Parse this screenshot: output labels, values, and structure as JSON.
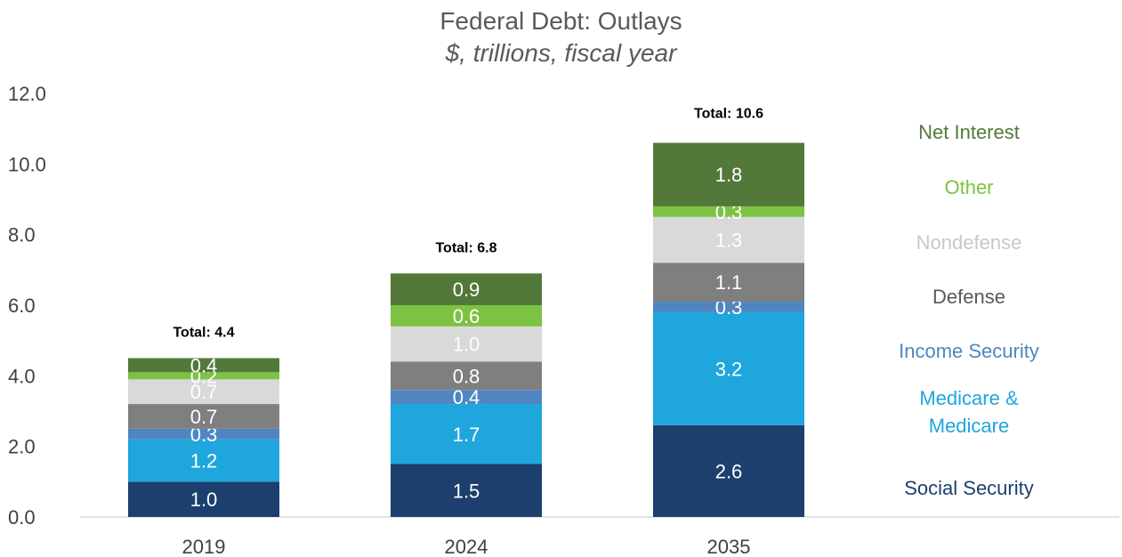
{
  "chart_data": {
    "type": "bar",
    "stacked": true,
    "title": "Federal Debt: Outlays",
    "subtitle": "$, trillions, fiscal year",
    "categories": [
      "2019",
      "2024",
      "2035"
    ],
    "ylim": [
      0,
      12
    ],
    "yticks": [
      "0.0",
      "2.0",
      "4.0",
      "6.0",
      "8.0",
      "10.0",
      "12.0"
    ],
    "grid": false,
    "legend_position": "right",
    "totals": [
      "Total: 4.4",
      "Total: 6.8",
      "Total: 10.6"
    ],
    "total_values": [
      4.4,
      6.8,
      10.6
    ],
    "series": [
      {
        "name": "Social Security",
        "color": "#1c3f6e",
        "values": [
          1.0,
          1.5,
          2.6
        ],
        "labels": [
          "1.0",
          "1.5",
          "2.6"
        ]
      },
      {
        "name": "Medicare & Medicare",
        "color": "#1ea6dd",
        "values": [
          1.2,
          1.7,
          3.2
        ],
        "labels": [
          "1.2",
          "1.7",
          "3.2"
        ]
      },
      {
        "name": "Income Security",
        "color": "#4f86c2",
        "values": [
          0.3,
          0.4,
          0.3
        ],
        "labels": [
          "0.3",
          "0.4",
          "0.3"
        ]
      },
      {
        "name": "Defense",
        "color": "#7f7f7f",
        "values": [
          0.7,
          0.8,
          1.1
        ],
        "labels": [
          "0.7",
          "0.8",
          "1.1"
        ]
      },
      {
        "name": "Nondefense",
        "color": "#d9d9d9",
        "values": [
          0.7,
          1.0,
          1.3
        ],
        "labels": [
          "0.7",
          "1.0",
          "1.3"
        ]
      },
      {
        "name": "Other",
        "color": "#7dc242",
        "values": [
          0.2,
          0.6,
          0.3
        ],
        "labels": [
          "0.2",
          "0.6",
          "0.3"
        ]
      },
      {
        "name": "Net Interest",
        "color": "#53793a",
        "values": [
          0.4,
          0.9,
          1.8
        ],
        "labels": [
          "0.4",
          "0.9",
          "1.8"
        ]
      }
    ],
    "legend": [
      {
        "label": "Net Interest",
        "color": "#53793a"
      },
      {
        "label": "Other",
        "color": "#7dc242"
      },
      {
        "label": "Nondefense",
        "color": "#c8c8c8"
      },
      {
        "label": "Defense",
        "color": "#595959"
      },
      {
        "label": "Income Security",
        "color": "#4f86c2"
      },
      {
        "label": "Medicare &\nMedicare",
        "color": "#1ea6dd"
      },
      {
        "label": "Social Security",
        "color": "#1c3f6e"
      }
    ]
  }
}
